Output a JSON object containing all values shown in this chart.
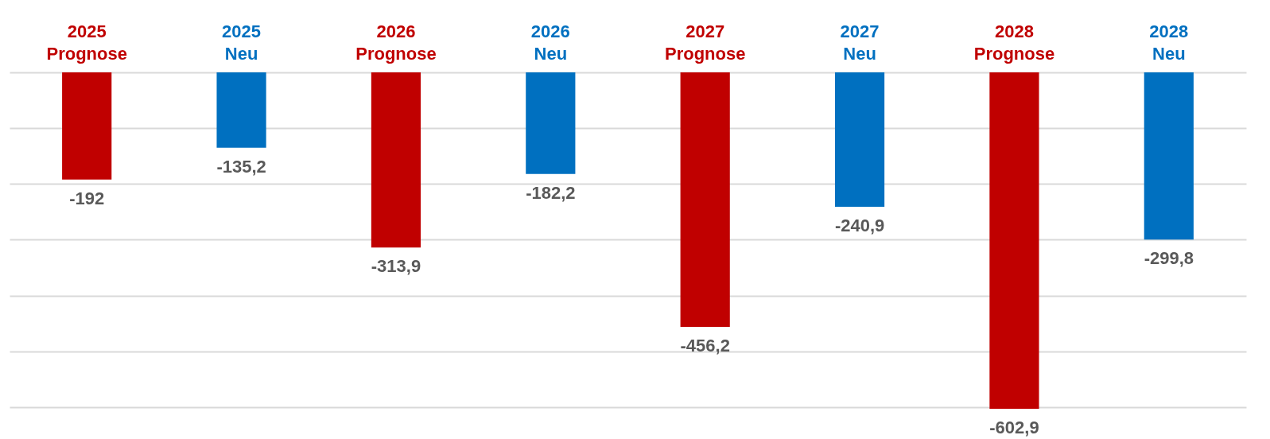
{
  "chart_data": {
    "type": "bar",
    "categories": [
      "2025\nPrognose",
      "2025\nNeu",
      "2026\nPrognose",
      "2026\nNeu",
      "2027\nPrognose",
      "2027\nNeu",
      "2028\nPrognose",
      "2028\nNeu"
    ],
    "values": [
      -192,
      -135.2,
      -313.9,
      -182.2,
      -456.2,
      -240.9,
      -602.9,
      -299.8
    ],
    "colors": [
      "#c00000",
      "#0070c0",
      "#c00000",
      "#0070c0",
      "#c00000",
      "#0070c0",
      "#c00000",
      "#0070c0"
    ],
    "value_labels": [
      "-192",
      "-135,2",
      "-313,9",
      "-182,2",
      "-456,2",
      "-240,9",
      "-602,9",
      "-299,8"
    ],
    "yticks": [
      {
        "value": 0,
        "label": null
      },
      {
        "value": -100,
        "label": null
      },
      {
        "value": -200,
        "label": null
      },
      {
        "value": -300,
        "label": null
      },
      {
        "value": -400,
        "label": null
      },
      {
        "value": -500,
        "label": null
      },
      {
        "value": -600,
        "label": null
      }
    ],
    "grid": true,
    "tick_labels": "x"
  }
}
